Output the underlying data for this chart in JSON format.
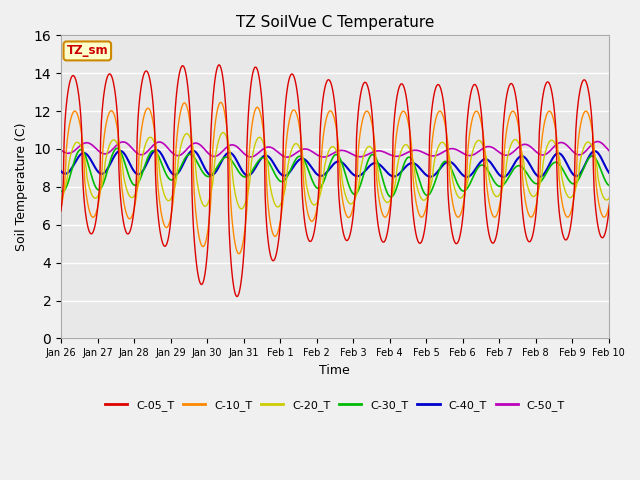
{
  "title": "TZ SoilVue C Temperature",
  "xlabel": "Time",
  "ylabel": "Soil Temperature (C)",
  "ylim": [
    0,
    16
  ],
  "yticks": [
    0,
    2,
    4,
    6,
    8,
    10,
    12,
    14,
    16
  ],
  "x_labels": [
    "Jan 26",
    "Jan 27",
    "Jan 28",
    "Jan 29",
    "Jan 30",
    "Jan 31",
    "Feb 1",
    "Feb 2",
    "Feb 3",
    "Feb 4",
    "Feb 5",
    "Feb 6",
    "Feb 7",
    "Feb 8",
    "Feb 9",
    "Feb 10"
  ],
  "series_colors": {
    "C-05_T": "#dd0000",
    "C-10_T": "#ff8800",
    "C-20_T": "#cccc00",
    "C-30_T": "#00bb00",
    "C-40_T": "#0000cc",
    "C-50_T": "#bb00bb"
  },
  "bg_color": "#e8e8e8",
  "fig_bg_color": "#f0f0f0",
  "annotation_text": "TZ_sm",
  "annotation_bg": "#ffffcc",
  "annotation_border": "#cc8800",
  "grid_color": "#ffffff"
}
